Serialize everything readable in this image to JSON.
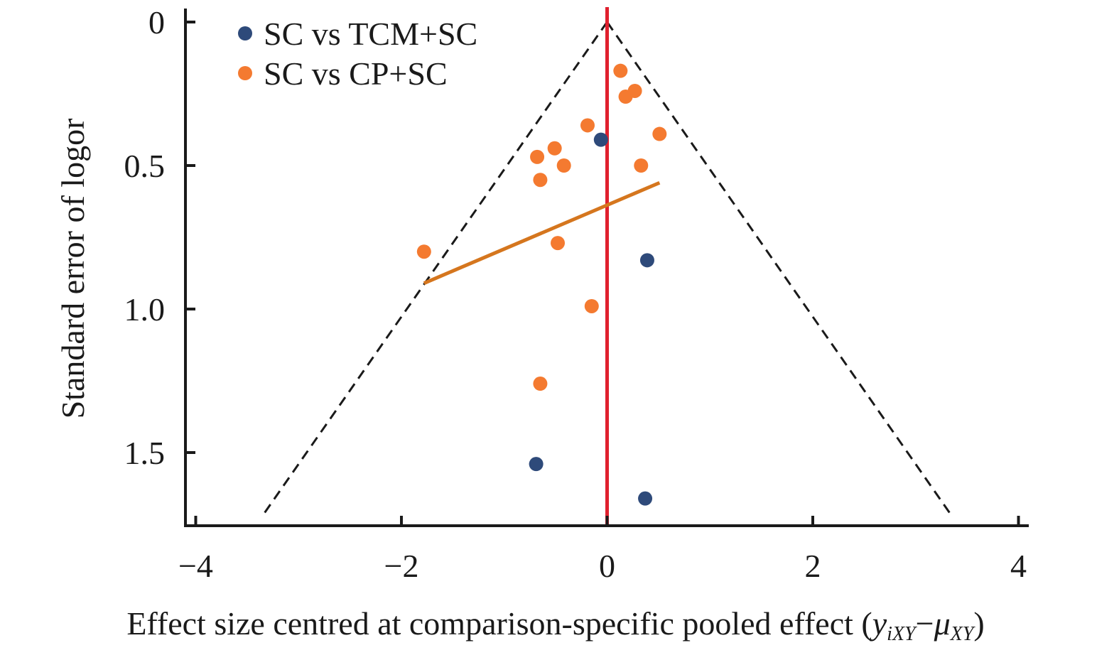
{
  "chart_data": {
    "type": "scatter",
    "title": "",
    "xlabel": {
      "prefix": "Effect size centred at comparison-specific pooled effect (",
      "y_symbol": "y",
      "y_subscript": "iXY",
      "dash": "−",
      "mu_symbol": "μ",
      "mu_subscript": "XY",
      "suffix": ")"
    },
    "ylabel": "Standard error of logor",
    "xlim": [
      -4.1,
      4.1
    ],
    "ylim": [
      0,
      1.75
    ],
    "y_inverted": true,
    "xticks": [
      -4,
      -2,
      0,
      2,
      4
    ],
    "xtick_labels": [
      "−4",
      "−2",
      "0",
      "2",
      "4"
    ],
    "yticks": [
      0,
      0.5,
      1.0,
      1.5
    ],
    "ytick_labels": [
      "0",
      "0.5",
      "1.0",
      "1.5"
    ],
    "grid": false,
    "legend_position": "top-left",
    "series": [
      {
        "name": "SC vs TCM+SC",
        "color": "#2e4a7a",
        "points": [
          {
            "x": -0.06,
            "y": 0.41
          },
          {
            "x": 0.39,
            "y": 0.83
          },
          {
            "x": -0.69,
            "y": 1.54
          },
          {
            "x": 0.37,
            "y": 1.66
          }
        ]
      },
      {
        "name": "SC vs CP+SC",
        "color": "#f47a30",
        "points": [
          {
            "x": 0.13,
            "y": 0.17
          },
          {
            "x": 0.27,
            "y": 0.24
          },
          {
            "x": 0.18,
            "y": 0.26
          },
          {
            "x": -0.19,
            "y": 0.36
          },
          {
            "x": 0.51,
            "y": 0.39
          },
          {
            "x": -0.51,
            "y": 0.44
          },
          {
            "x": -0.68,
            "y": 0.47
          },
          {
            "x": -0.42,
            "y": 0.5
          },
          {
            "x": 0.33,
            "y": 0.5
          },
          {
            "x": -0.65,
            "y": 0.55
          },
          {
            "x": -1.78,
            "y": 0.8
          },
          {
            "x": -0.48,
            "y": 0.77
          },
          {
            "x": -0.15,
            "y": 0.99
          },
          {
            "x": -0.65,
            "y": 1.26
          }
        ]
      }
    ],
    "reference_line": {
      "x": 0,
      "color": "#e0202e"
    },
    "funnel": {
      "apex": {
        "x": 0,
        "y": 0
      },
      "left_end": {
        "x": -3.35,
        "y": 1.72
      },
      "right_end": {
        "x": 3.35,
        "y": 1.72
      },
      "color": "#1a1a1a"
    },
    "regression_line": {
      "color": "#d5761e",
      "from": {
        "x": -1.78,
        "y": 0.91
      },
      "to": {
        "x": 0.51,
        "y": 0.56
      }
    }
  }
}
